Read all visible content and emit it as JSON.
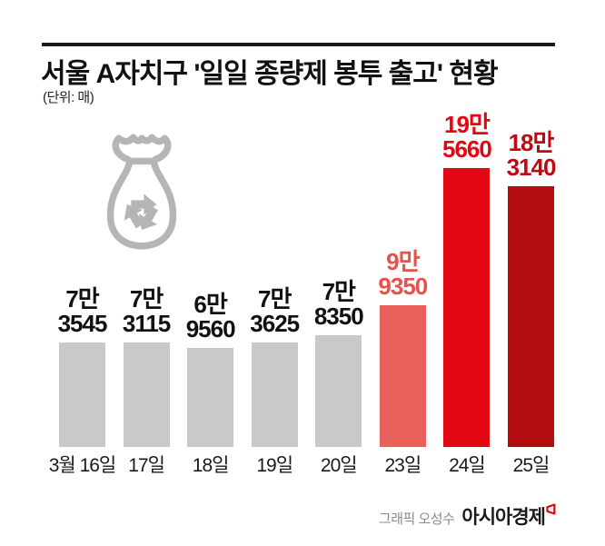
{
  "header": {
    "title": "서울 A자치구 '일일 종량제 봉투 출고' 현황",
    "unit_label": "(단위: 매)"
  },
  "colors": {
    "rule_black": "#1a1a1a",
    "title_black": "#111111",
    "bar_gray": "#c9c9c9",
    "bar_salmon": "#e8615a",
    "bar_red": "#e30613",
    "bar_dark_red": "#b20c10",
    "value_label_black": "#111111",
    "value_label_salmon": "#e4534c",
    "value_label_red": "#e30613",
    "value_label_dark_red": "#c00812",
    "icon_gray": "#b5b5b5",
    "credit_gray": "#8a8a8a"
  },
  "icons": {
    "bag": "recycle-waste-bag-icon",
    "brand_mark": "asiae-logo-mark"
  },
  "chart_data": {
    "type": "bar",
    "title": "서울 A자치구 '일일 종량제 봉투 출고' 현황",
    "unit": "매",
    "categories": [
      "3월 16일",
      "17일",
      "18일",
      "19일",
      "20일",
      "23일",
      "24일",
      "25일"
    ],
    "values": [
      73545,
      73115,
      69560,
      73625,
      78350,
      99350,
      195660,
      183140
    ],
    "value_labels": [
      [
        "7만",
        "3545"
      ],
      [
        "7만",
        "3115"
      ],
      [
        "6만",
        "9560"
      ],
      [
        "7만",
        "3625"
      ],
      [
        "7만",
        "8350"
      ],
      [
        "9만",
        "9350"
      ],
      [
        "19만",
        "5660"
      ],
      [
        "18만",
        "3140"
      ]
    ],
    "bar_colors": [
      "#c9c9c9",
      "#c9c9c9",
      "#c9c9c9",
      "#c9c9c9",
      "#c9c9c9",
      "#e8615a",
      "#e30613",
      "#b20c10"
    ],
    "label_colors": [
      "#111111",
      "#111111",
      "#111111",
      "#111111",
      "#111111",
      "#e4534c",
      "#e30613",
      "#c00812"
    ],
    "ylim": [
      0,
      195660
    ],
    "grid": false,
    "legend": null
  },
  "footer": {
    "credit_prefix": "그래픽 오성수",
    "brand": "아시아경제"
  }
}
